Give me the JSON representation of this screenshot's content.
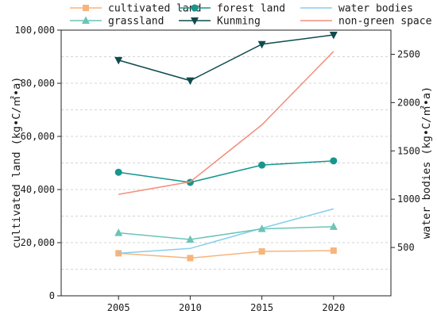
{
  "chart_data": {
    "type": "line",
    "x": [
      2005,
      2010,
      2015,
      2020
    ],
    "x_tick_labels": [
      "2005",
      "2010",
      "2015",
      "2020"
    ],
    "xlim": [
      2001,
      2024
    ],
    "y_left": {
      "label": "cultivated land (kg•C/㎡•a)",
      "range": [
        0,
        100000
      ],
      "ticks": [
        0,
        20000,
        40000,
        60000,
        80000,
        100000
      ],
      "tick_labels": [
        "0",
        "20,000",
        "40,000",
        "60,000",
        "80,000",
        "100,000"
      ]
    },
    "y_right": {
      "label": "water bodies (kg•C/㎡•a)",
      "range": [
        0,
        2750
      ],
      "ticks": [
        500,
        1000,
        1500,
        2000,
        2500
      ],
      "tick_labels": [
        "500",
        "1000",
        "1500",
        "2000",
        "2500"
      ]
    },
    "grid": "horizontal dashed",
    "legend_position": "top",
    "series": [
      {
        "name": "cultivated land",
        "axis": "left",
        "color": "#f7b47b",
        "marker": "square",
        "values": [
          16000,
          14200,
          16700,
          17000
        ]
      },
      {
        "name": "forest land",
        "axis": "left",
        "color": "#16968e",
        "marker": "circle",
        "values": [
          46500,
          42700,
          49200,
          50800
        ]
      },
      {
        "name": "water bodies",
        "axis": "right",
        "color": "#86ceeb",
        "marker": "none",
        "values": [
          440,
          490,
          700,
          900
        ]
      },
      {
        "name": "grassland",
        "axis": "left",
        "color": "#6cc4b8",
        "marker": "triangle",
        "values": [
          23700,
          21200,
          25200,
          26000
        ]
      },
      {
        "name": "Kunming",
        "axis": "left",
        "color": "#0f4b4e",
        "marker": "triangle-down",
        "values": [
          88700,
          81000,
          94700,
          98200
        ]
      },
      {
        "name": "non-green space",
        "axis": "right",
        "color": "#f38f7c",
        "marker": "none",
        "values": [
          1050,
          1180,
          1770,
          2530
        ]
      }
    ]
  }
}
